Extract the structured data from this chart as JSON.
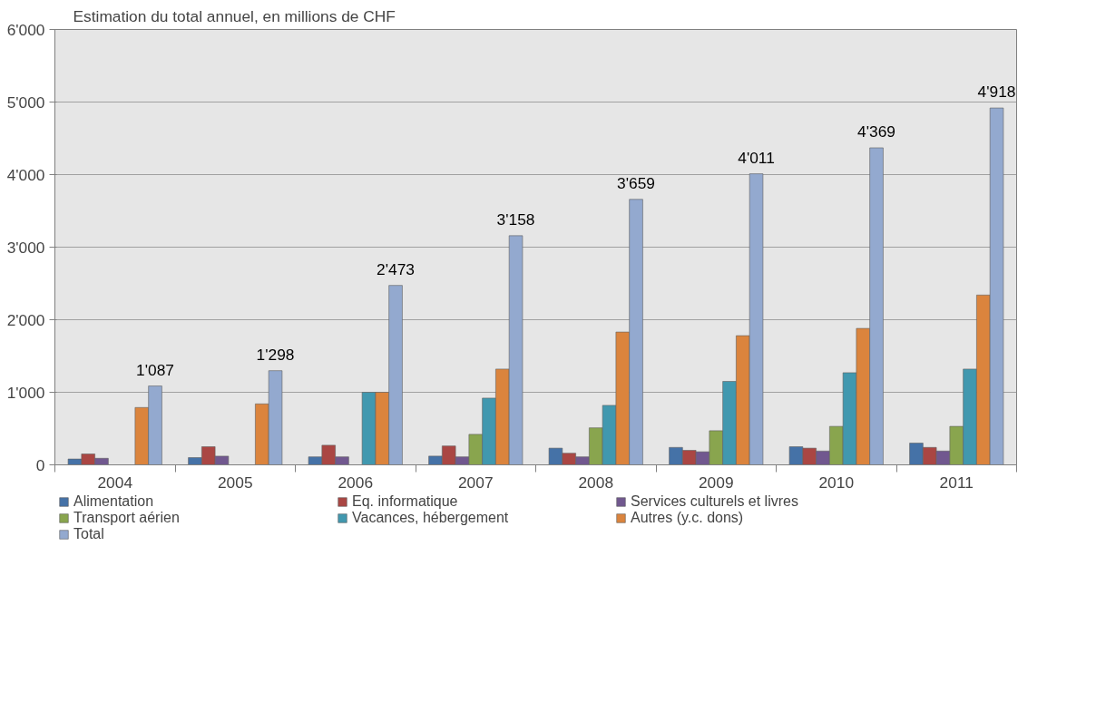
{
  "chart_data": {
    "type": "bar",
    "title": "Estimation du total annuel, en millions de CHF",
    "categories": [
      "2004",
      "2005",
      "2006",
      "2007",
      "2008",
      "2009",
      "2010",
      "2011"
    ],
    "series": [
      {
        "name": "Alimentation",
        "color": "#4572a7",
        "values": [
          80,
          100,
          110,
          120,
          230,
          240,
          250,
          300
        ]
      },
      {
        "name": "Eq. informatique",
        "color": "#aa4643",
        "values": [
          150,
          250,
          270,
          260,
          160,
          200,
          230,
          240
        ]
      },
      {
        "name": "Services culturels et livres",
        "color": "#71588f",
        "values": [
          90,
          120,
          110,
          110,
          110,
          180,
          190,
          190
        ]
      },
      {
        "name": "Transport aérien",
        "color": "#89a54e",
        "values": [
          null,
          null,
          null,
          420,
          510,
          470,
          530,
          530
        ]
      },
      {
        "name": "Vacances, hébergement",
        "color": "#4198af",
        "values": [
          null,
          null,
          1000,
          920,
          820,
          1150,
          1270,
          1320
        ]
      },
      {
        "name": "Autres (y.c. dons)",
        "color": "#db843d",
        "values": [
          790,
          840,
          1000,
          1320,
          1830,
          1780,
          1880,
          2340
        ]
      },
      {
        "name": "Total",
        "color": "#93a9cf",
        "values": [
          1087,
          1298,
          2473,
          3158,
          3659,
          4011,
          4369,
          4918
        ],
        "value_labels": [
          "1'087",
          "1'298",
          "2'473",
          "3'158",
          "3'659",
          "4'011",
          "4'369",
          "4'918"
        ]
      }
    ],
    "ylim": [
      0,
      6000
    ],
    "yticks": [
      {
        "value": 0,
        "label": "0"
      },
      {
        "value": 1000,
        "label": "1'000"
      },
      {
        "value": 2000,
        "label": "2'000"
      },
      {
        "value": 3000,
        "label": "3'000"
      },
      {
        "value": 4000,
        "label": "4'000"
      },
      {
        "value": 5000,
        "label": "5'000"
      },
      {
        "value": 6000,
        "label": "6'000"
      }
    ],
    "grid": "y",
    "legend": "bottom"
  }
}
